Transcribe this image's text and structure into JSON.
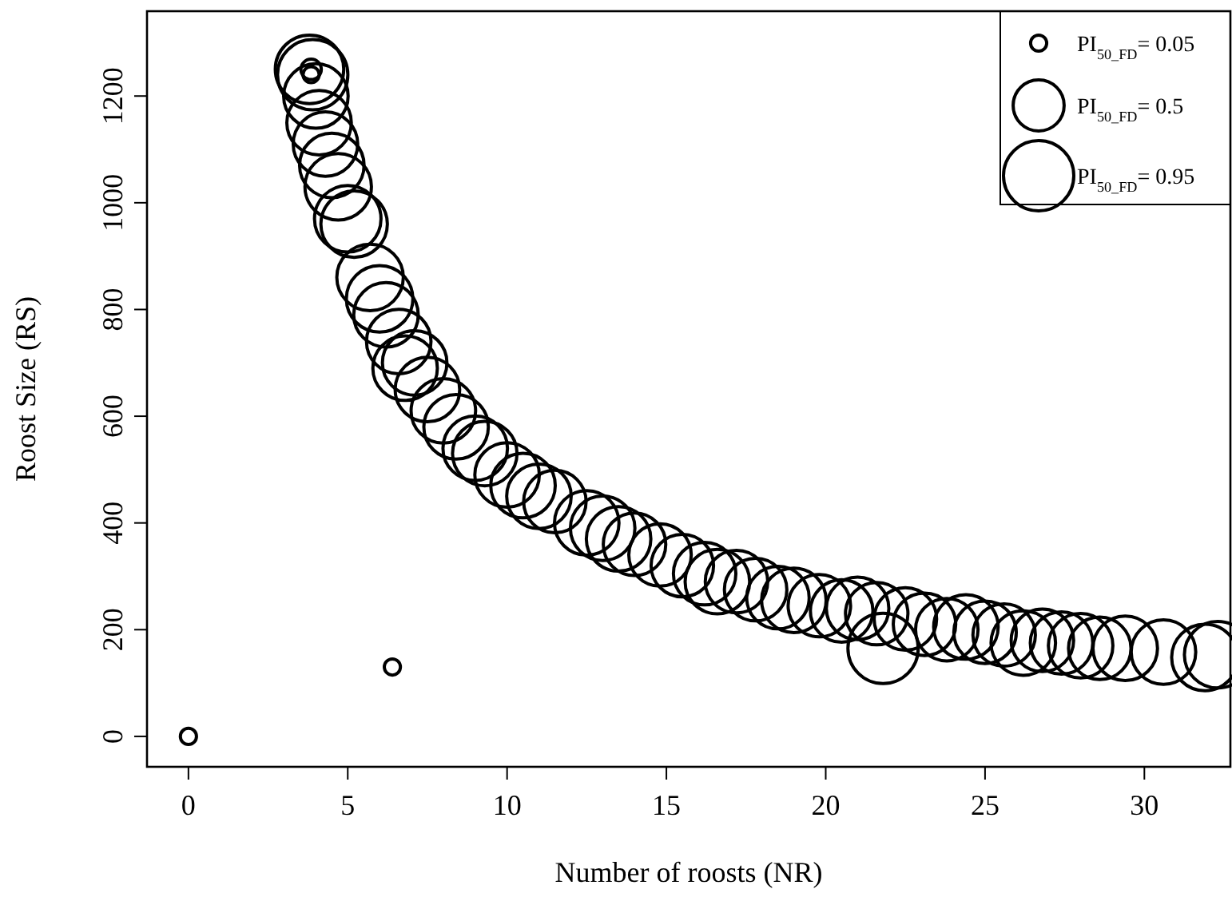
{
  "chart_data": {
    "type": "bubble",
    "xlabel": "Number of roosts (NR)",
    "ylabel": "Roost Size (RS)",
    "xlim": [
      -1.3,
      32.7
    ],
    "ylim": [
      -57,
      1359
    ],
    "xticks": [
      0,
      5,
      10,
      15,
      20,
      25,
      30
    ],
    "yticks": [
      0,
      200,
      400,
      600,
      800,
      1000,
      1200
    ],
    "grid": false,
    "marker": "circle",
    "size_legend": [
      {
        "value": 0.05,
        "label": "PI$_{50_FD}$= 0.05"
      },
      {
        "value": 0.5,
        "label": "PI$_{50_FD}$= 0.5"
      },
      {
        "value": 0.95,
        "label": "PI$_{50_FD}$= 0.95"
      }
    ],
    "series": [
      {
        "color": "#000000",
        "x": [
          0,
          6.4,
          3.8,
          3.9,
          3.85,
          3.85,
          4.0,
          4.1,
          4.3,
          4.5,
          4.7,
          5.0,
          5.2,
          5.7,
          6.0,
          6.2,
          6.6,
          6.8,
          7.1,
          7.5,
          8.0,
          8.4,
          9.0,
          9.3,
          10.0,
          10.5,
          11.0,
          11.5,
          12.5,
          13.0,
          13.5,
          14.0,
          14.8,
          15.5,
          16.2,
          16.6,
          17.2,
          17.8,
          18.5,
          19.0,
          19.8,
          20.5,
          21.0,
          21.6,
          21.8,
          22.5,
          23.1,
          23.8,
          24.4,
          25.0,
          25.6,
          26.2,
          26.8,
          27.4,
          28.0,
          28.6,
          29.4,
          30.6,
          31.9,
          32.3
        ],
        "values": [
          0,
          130,
          1250,
          1240,
          1250,
          1240,
          1200,
          1150,
          1110,
          1070,
          1030,
          970,
          960,
          860,
          820,
          790,
          740,
          690,
          700,
          650,
          610,
          580,
          540,
          530,
          490,
          470,
          450,
          440,
          400,
          390,
          370,
          360,
          340,
          320,
          305,
          290,
          290,
          275,
          260,
          255,
          245,
          235,
          240,
          230,
          165,
          220,
          210,
          200,
          205,
          195,
          190,
          175,
          180,
          175,
          170,
          165,
          165,
          158,
          148,
          153
        ],
        "sizes": [
          0.05,
          0.05,
          0.9,
          0.95,
          0.08,
          0.05,
          0.8,
          0.8,
          0.8,
          0.8,
          0.85,
          0.85,
          0.85,
          0.85,
          0.85,
          0.8,
          0.8,
          0.8,
          0.8,
          0.8,
          0.8,
          0.8,
          0.8,
          0.8,
          0.8,
          0.8,
          0.8,
          0.75,
          0.8,
          0.8,
          0.8,
          0.75,
          0.75,
          0.75,
          0.75,
          0.8,
          0.75,
          0.75,
          0.75,
          0.8,
          0.75,
          0.75,
          0.75,
          0.75,
          0.95,
          0.75,
          0.75,
          0.75,
          0.8,
          0.75,
          0.75,
          0.8,
          0.75,
          0.75,
          0.8,
          0.75,
          0.8,
          0.8,
          0.85,
          0.85
        ]
      }
    ]
  }
}
